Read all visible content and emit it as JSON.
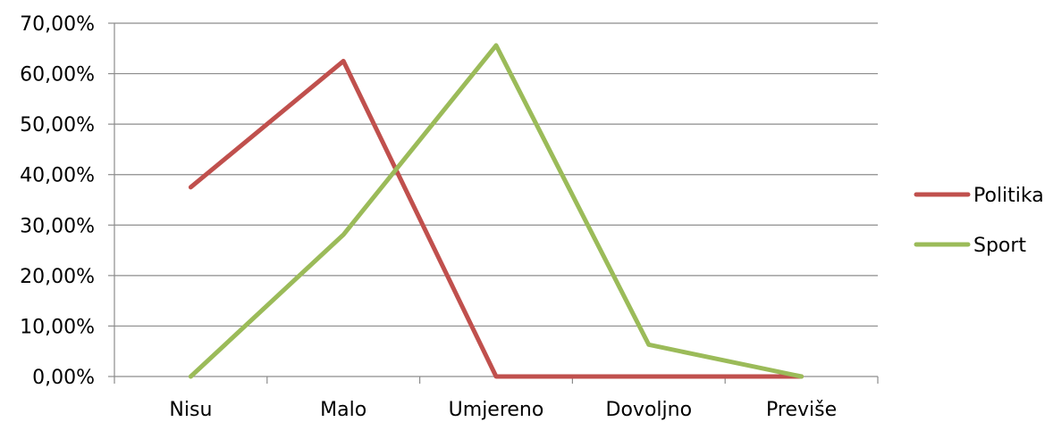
{
  "chart_data": {
    "type": "line",
    "title": "",
    "xlabel": "",
    "ylabel": "",
    "categories": [
      "Nisu",
      "Malo",
      "Umjereno",
      "Dovoljno",
      "Previše"
    ],
    "y_ticks": [
      "0,00%",
      "10,00%",
      "20,00%",
      "30,00%",
      "40,00%",
      "50,00%",
      "60,00%",
      "70,00%"
    ],
    "ylim": [
      0,
      70
    ],
    "grid": true,
    "legend_position": "right",
    "series": [
      {
        "name": "Politika",
        "color": "#c0504d",
        "values": [
          37.5,
          62.5,
          0,
          0,
          0
        ]
      },
      {
        "name": "Sport",
        "color": "#9bbb59",
        "values": [
          0,
          28.1,
          65.6,
          6.3,
          0
        ]
      }
    ]
  }
}
